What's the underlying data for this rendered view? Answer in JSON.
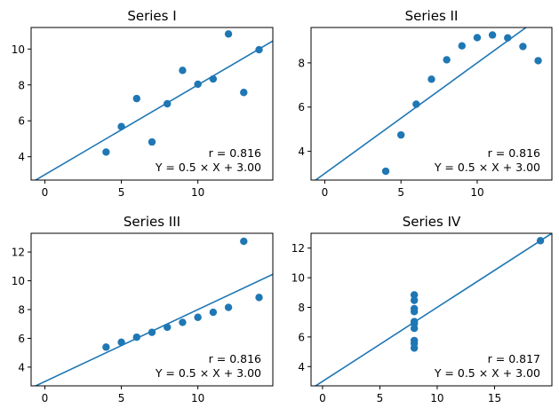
{
  "figure": {
    "color": "#1f77b4"
  },
  "chart_data": [
    {
      "type": "scatter",
      "title": "Series I",
      "x": [
        10,
        8,
        13,
        9,
        11,
        14,
        6,
        4,
        12,
        7,
        5
      ],
      "y": [
        8.04,
        6.95,
        7.58,
        8.81,
        8.33,
        9.96,
        7.24,
        4.26,
        10.84,
        4.82,
        5.68
      ],
      "fit": {
        "slope": 0.5,
        "intercept": 3.0
      },
      "annotation_r": "r = 0.816",
      "annotation_eq": "Y = 0.5 × X + 3.00",
      "xlim": [
        -0.9,
        14.9
      ],
      "ylim": [
        2.7,
        11.2
      ],
      "xticks": [
        0,
        5,
        10
      ],
      "yticks": [
        4,
        6,
        8,
        10
      ]
    },
    {
      "type": "scatter",
      "title": "Series II",
      "x": [
        10,
        8,
        13,
        9,
        11,
        14,
        6,
        4,
        12,
        7,
        5
      ],
      "y": [
        9.14,
        8.14,
        8.74,
        8.77,
        9.26,
        8.1,
        6.13,
        3.1,
        9.13,
        7.26,
        4.74
      ],
      "fit": {
        "slope": 0.5,
        "intercept": 3.0
      },
      "annotation_r": "r = 0.816",
      "annotation_eq": "Y = 0.5 × X + 3.00",
      "xlim": [
        -0.9,
        14.9
      ],
      "ylim": [
        2.7,
        9.6
      ],
      "xticks": [
        0,
        5,
        10
      ],
      "yticks": [
        4,
        6,
        8
      ]
    },
    {
      "type": "scatter",
      "title": "Series III",
      "x": [
        10,
        8,
        13,
        9,
        11,
        14,
        6,
        4,
        12,
        7,
        5
      ],
      "y": [
        7.46,
        6.77,
        12.74,
        7.11,
        7.81,
        8.84,
        6.08,
        5.39,
        8.15,
        6.42,
        5.73
      ],
      "fit": {
        "slope": 0.5,
        "intercept": 3.0
      },
      "annotation_r": "r = 0.816",
      "annotation_eq": "Y = 0.5 × X + 3.00",
      "xlim": [
        -0.9,
        14.9
      ],
      "ylim": [
        2.7,
        13.3
      ],
      "xticks": [
        0,
        5,
        10
      ],
      "yticks": [
        4,
        6,
        8,
        10,
        12
      ]
    },
    {
      "type": "scatter",
      "title": "Series IV",
      "x": [
        8,
        8,
        8,
        8,
        8,
        8,
        8,
        19,
        8,
        8,
        8
      ],
      "y": [
        6.58,
        5.76,
        7.71,
        8.84,
        8.47,
        7.04,
        5.25,
        12.5,
        5.56,
        7.91,
        6.89
      ],
      "fit": {
        "slope": 0.5,
        "intercept": 3.0
      },
      "annotation_r": "r = 0.817",
      "annotation_eq": "Y = 0.5 × X + 3.00",
      "xlim": [
        -1,
        20.0
      ],
      "ylim": [
        2.7,
        13.0
      ],
      "xticks": [
        0,
        5,
        10,
        15
      ],
      "yticks": [
        4,
        6,
        8,
        10,
        12
      ]
    }
  ]
}
